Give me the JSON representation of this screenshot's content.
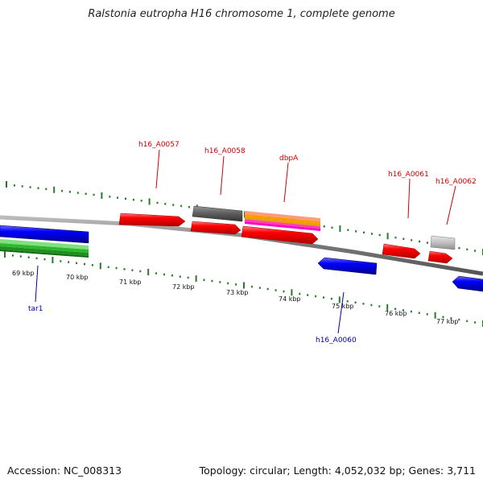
{
  "title": "Ralstonia eutropha H16 chromosome 1, complete genome",
  "footer": {
    "accession": "Accession: NC_008313",
    "summary": "Topology: circular; Length: 4,052,032 bp; Genes: 3,711"
  },
  "ticks": [
    "69 kbp",
    "70 kbp",
    "71 kbp",
    "72 kbp",
    "73 kbp",
    "74 kbp",
    "75 kbp",
    "76 kbp",
    "77 kbp"
  ],
  "gene_labels": {
    "h16_A0057": "h16_A0057",
    "h16_A0058": "h16_A0058",
    "dbpA": "dbpA",
    "h16_A0061": "h16_A0061",
    "h16_A0062": "h16_A0062",
    "tar1": "tar1",
    "h16_A0060": "h16_A0060"
  },
  "colors": {
    "forward_gene": "#ff0000",
    "reverse_gene": "#0000ff",
    "rna_gene": "#22b022",
    "pseudo_gene": "#666666",
    "misc_gene": "#bbbbbb",
    "label_forward": "#cc0000",
    "label_reverse": "#0000aa",
    "tick": "#2a7a2a",
    "backbone": "#888888"
  }
}
